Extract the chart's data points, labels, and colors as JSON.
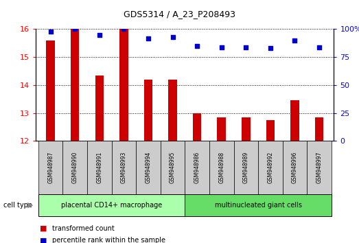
{
  "title": "GDS5314 / A_23_P208493",
  "samples": [
    "GSM948987",
    "GSM948990",
    "GSM948991",
    "GSM948993",
    "GSM948994",
    "GSM948995",
    "GSM948986",
    "GSM948988",
    "GSM948989",
    "GSM948992",
    "GSM948996",
    "GSM948997"
  ],
  "transformed_count": [
    15.6,
    16.0,
    14.35,
    16.0,
    14.2,
    14.2,
    13.0,
    12.85,
    12.85,
    12.75,
    13.45,
    12.85
  ],
  "percentile_rank": [
    98,
    100,
    95,
    100,
    92,
    93,
    85,
    84,
    84,
    83,
    90,
    84
  ],
  "group1_label": "placental CD14+ macrophage",
  "group2_label": "multinucleated giant cells",
  "group1_count": 6,
  "group2_count": 6,
  "bar_color": "#cc0000",
  "dot_color": "#0000cc",
  "ylim_left": [
    12,
    16
  ],
  "ylim_right": [
    0,
    100
  ],
  "yticks_left": [
    12,
    13,
    14,
    15,
    16
  ],
  "yticks_right": [
    0,
    25,
    50,
    75,
    100
  ],
  "yticklabels_right": [
    "0",
    "25",
    "50",
    "75",
    "100%"
  ],
  "group1_color": "#aaffaa",
  "group2_color": "#66dd66",
  "xlabel_area_color": "#cccccc",
  "legend_bar_label": "transformed count",
  "legend_dot_label": "percentile rank within the sample",
  "cell_type_label": "cell type",
  "bar_width": 0.35
}
